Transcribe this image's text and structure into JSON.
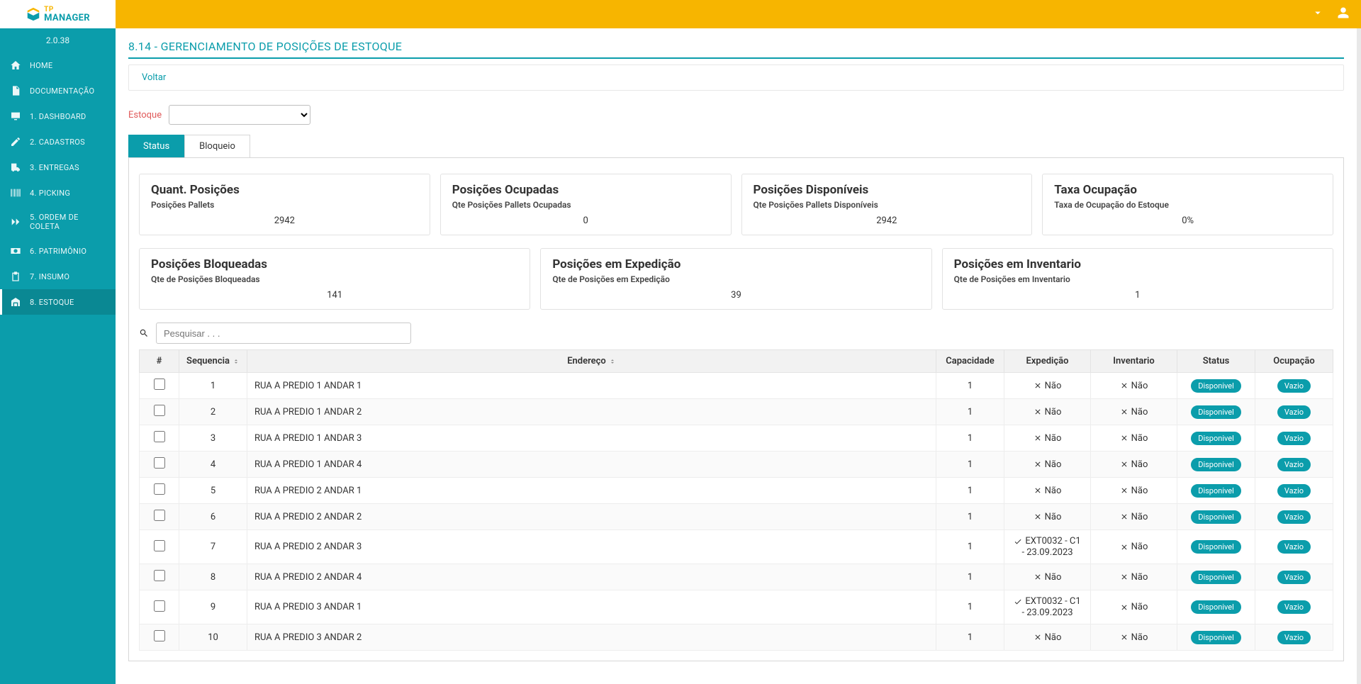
{
  "brand": {
    "tp": "TP",
    "manager": "MANAGER"
  },
  "version": "2.0.38",
  "sidebar": {
    "items": [
      {
        "label": "HOME"
      },
      {
        "label": "DOCUMENTAÇÃO"
      },
      {
        "label": "1. DASHBOARD"
      },
      {
        "label": "2. CADASTROS"
      },
      {
        "label": "3. ENTREGAS"
      },
      {
        "label": "4. PICKING"
      },
      {
        "label": "5. ORDEM DE COLETA"
      },
      {
        "label": "6. PATRIMÔNIO"
      },
      {
        "label": "7. INSUMO"
      },
      {
        "label": "8. ESTOQUE"
      }
    ]
  },
  "page": {
    "title": "8.14 - GERENCIAMENTO DE POSIÇÕES DE ESTOQUE",
    "back": "Voltar",
    "filter_label": "Estoque",
    "select_value": ""
  },
  "tabs": {
    "status": "Status",
    "bloqueio": "Bloqueio"
  },
  "cardsRow1": [
    {
      "title": "Quant. Posições",
      "sub": "Posições Pallets",
      "value": "2942"
    },
    {
      "title": "Posições Ocupadas",
      "sub": "Qte Posições Pallets Ocupadas",
      "value": "0"
    },
    {
      "title": "Posições Disponíveis",
      "sub": "Qte Posições Pallets Disponíveis",
      "value": "2942"
    },
    {
      "title": "Taxa Ocupação",
      "sub": "Taxa de Ocupação do Estoque",
      "value": "0%"
    }
  ],
  "cardsRow2": [
    {
      "title": "Posições Bloqueadas",
      "sub": "Qte de Posições Bloqueadas",
      "value": "141"
    },
    {
      "title": "Posições em Expedição",
      "sub": "Qte de Posições em Expedição",
      "value": "39"
    },
    {
      "title": "Posições em Inventario",
      "sub": "Qte de Posições em Inventario",
      "value": "1"
    }
  ],
  "search": {
    "placeholder": "Pesquisar . . ."
  },
  "table": {
    "columns": {
      "hash": "#",
      "seq": "Sequencia",
      "endereco": "Endereço",
      "capacidade": "Capacidade",
      "expedicao": "Expedição",
      "inventario": "Inventario",
      "status": "Status",
      "ocupacao": "Ocupação"
    },
    "no_label": "Não",
    "status_label": "Disponivel",
    "ocup_label": "Vazio",
    "exp_value": "EXT0032 - C1 - 23.09.2023",
    "rows": [
      {
        "seq": "1",
        "addr": "RUA A PREDIO 1 ANDAR 1",
        "cap": "1",
        "exp_set": false,
        "inv_set": false
      },
      {
        "seq": "2",
        "addr": "RUA A PREDIO 1 ANDAR 2",
        "cap": "1",
        "exp_set": false,
        "inv_set": false
      },
      {
        "seq": "3",
        "addr": "RUA A PREDIO 1 ANDAR 3",
        "cap": "1",
        "exp_set": false,
        "inv_set": false
      },
      {
        "seq": "4",
        "addr": "RUA A PREDIO 1 ANDAR 4",
        "cap": "1",
        "exp_set": false,
        "inv_set": false
      },
      {
        "seq": "5",
        "addr": "RUA A PREDIO 2 ANDAR 1",
        "cap": "1",
        "exp_set": false,
        "inv_set": false
      },
      {
        "seq": "6",
        "addr": "RUA A PREDIO 2 ANDAR 2",
        "cap": "1",
        "exp_set": false,
        "inv_set": false
      },
      {
        "seq": "7",
        "addr": "RUA A PREDIO 2 ANDAR 3",
        "cap": "1",
        "exp_set": true,
        "inv_set": false
      },
      {
        "seq": "8",
        "addr": "RUA A PREDIO 2 ANDAR 4",
        "cap": "1",
        "exp_set": false,
        "inv_set": false
      },
      {
        "seq": "9",
        "addr": "RUA A PREDIO 3 ANDAR 1",
        "cap": "1",
        "exp_set": true,
        "inv_set": false
      },
      {
        "seq": "10",
        "addr": "RUA A PREDIO 3 ANDAR 2",
        "cap": "1",
        "exp_set": false,
        "inv_set": false
      }
    ]
  },
  "colors": {
    "accent": "#0b9dab",
    "topbar": "#f7b500",
    "danger_text": "#e05a5a",
    "badge_bg": "#0b9dab"
  }
}
